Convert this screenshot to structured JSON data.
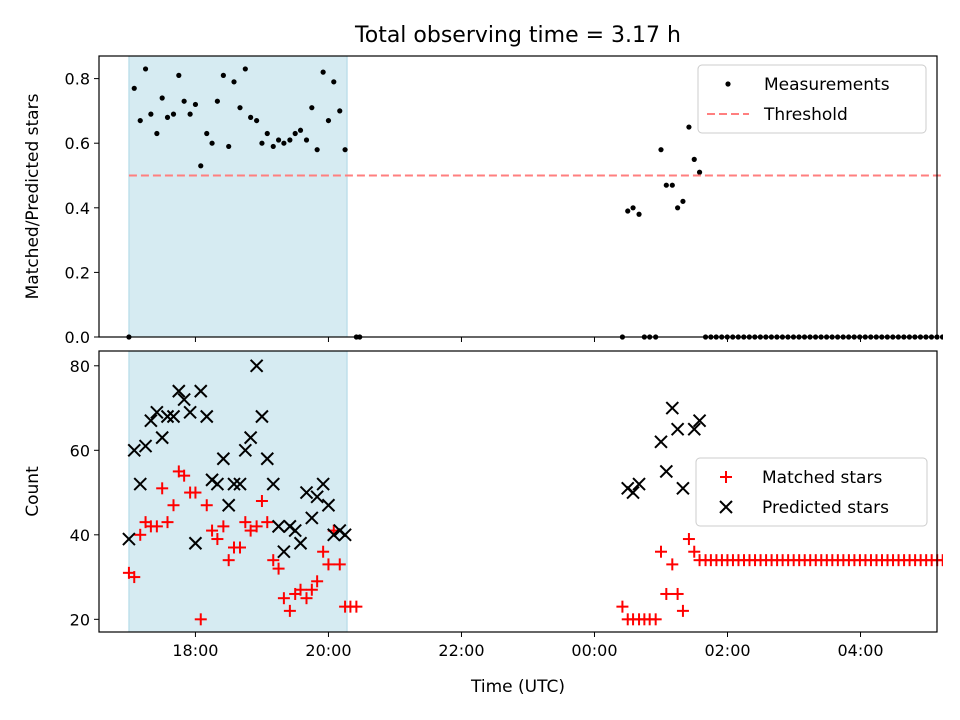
{
  "title": "Total observing time = 3.17 h",
  "xlabel": "Time (UTC)",
  "x_ticks": [
    {
      "hour": 18,
      "label": "18:00"
    },
    {
      "hour": 20,
      "label": "20:00"
    },
    {
      "hour": 22,
      "label": "22:00"
    },
    {
      "hour": 24,
      "label": "00:00"
    },
    {
      "hour": 26,
      "label": "02:00"
    },
    {
      "hour": 28,
      "label": "04:00"
    }
  ],
  "colors": {
    "shade": "#add8e6",
    "measurements": "#000000",
    "threshold": "#ff7f7f",
    "matched": "#ff0000",
    "predicted": "#000000"
  },
  "chart_data": [
    {
      "type": "scatter",
      "ylabel": "Matched/Predicted stars",
      "xlim": [
        16.55,
        29.15
      ],
      "ylim": [
        0,
        0.87
      ],
      "y_ticks": [
        0.0,
        0.2,
        0.4,
        0.6,
        0.8
      ],
      "shaded_span": [
        17.0,
        20.28
      ],
      "legend_position": "upper right",
      "series": [
        {
          "name": "Measurements",
          "marker": "point",
          "x": [
            17.0,
            17.08,
            17.17,
            17.25,
            17.33,
            17.42,
            17.5,
            17.58,
            17.67,
            17.75,
            17.83,
            17.92,
            18.0,
            18.08,
            18.17,
            18.25,
            18.33,
            18.42,
            18.5,
            18.58,
            18.67,
            18.75,
            18.83,
            18.92,
            19.0,
            19.08,
            19.17,
            19.25,
            19.33,
            19.42,
            19.5,
            19.58,
            19.67,
            19.75,
            19.83,
            19.92,
            20.0,
            20.08,
            20.17,
            20.25,
            20.42,
            20.47,
            24.42,
            24.5,
            24.58,
            24.67,
            24.75,
            24.83,
            24.92,
            25.0,
            25.08,
            25.17,
            25.25,
            25.33,
            25.42,
            25.5,
            25.58,
            25.67,
            25.75
          ],
          "y": [
            0.0,
            0.77,
            0.67,
            0.83,
            0.69,
            0.63,
            0.74,
            0.68,
            0.69,
            0.81,
            0.73,
            0.69,
            0.72,
            0.53,
            0.63,
            0.6,
            0.73,
            0.81,
            0.59,
            0.79,
            0.71,
            0.83,
            0.68,
            0.67,
            0.6,
            0.63,
            0.59,
            0.61,
            0.6,
            0.61,
            0.63,
            0.64,
            0.61,
            0.71,
            0.58,
            0.82,
            0.67,
            0.79,
            0.7,
            0.58,
            0.0,
            0.0,
            0.0,
            0.39,
            0.4,
            0.38,
            0.0,
            0.0,
            0.0,
            0.58,
            0.47,
            0.47,
            0.4,
            0.42,
            0.65,
            0.55,
            0.51,
            0.0,
            0.0
          ]
        },
        {
          "name": "Threshold",
          "marker": "dashed-line",
          "x": [
            17.0,
            29.5
          ],
          "y": [
            0.5,
            0.5
          ]
        }
      ],
      "flat_run": {
        "series": "Measurements",
        "from": 25.83,
        "to": 29.58,
        "step": 0.083,
        "y": 0.0
      }
    },
    {
      "type": "scatter",
      "ylabel": "Count",
      "xlim": [
        16.55,
        29.15
      ],
      "ylim": [
        17,
        83.5
      ],
      "y_ticks": [
        20,
        40,
        60,
        80
      ],
      "shaded_span": [
        17.0,
        20.28
      ],
      "legend_position": "center right",
      "series": [
        {
          "name": "Matched stars",
          "marker": "plus",
          "x": [
            17.0,
            17.08,
            17.17,
            17.25,
            17.33,
            17.42,
            17.5,
            17.58,
            17.67,
            17.75,
            17.83,
            17.92,
            18.0,
            18.08,
            18.17,
            18.25,
            18.33,
            18.42,
            18.5,
            18.58,
            18.67,
            18.75,
            18.83,
            18.92,
            19.0,
            19.08,
            19.17,
            19.25,
            19.33,
            19.42,
            19.5,
            19.58,
            19.67,
            19.75,
            19.83,
            19.92,
            20.0,
            20.08,
            20.17,
            20.25,
            20.33,
            20.42,
            24.42,
            24.5,
            24.58,
            24.67,
            24.75,
            24.83,
            24.92,
            25.0,
            25.08,
            25.17,
            25.25,
            25.33,
            25.42,
            25.5,
            25.58,
            25.67
          ],
          "y": [
            31,
            30,
            40,
            43,
            42,
            42,
            51,
            43,
            47,
            55,
            54,
            50,
            50,
            20,
            47,
            41,
            39,
            42,
            34,
            37,
            37,
            43,
            41,
            42,
            48,
            43,
            34,
            32,
            25,
            22,
            26,
            27,
            25,
            27,
            29,
            36,
            33,
            41,
            33,
            23,
            23,
            23,
            23,
            20,
            20,
            20,
            20,
            20,
            20,
            36,
            26,
            33,
            26,
            22,
            39,
            36,
            34,
            34
          ]
        },
        {
          "name": "Predicted stars",
          "marker": "x",
          "x": [
            17.0,
            17.08,
            17.17,
            17.25,
            17.33,
            17.42,
            17.5,
            17.58,
            17.67,
            17.75,
            17.83,
            17.92,
            18.0,
            18.08,
            18.17,
            18.25,
            18.33,
            18.42,
            18.5,
            18.58,
            18.67,
            18.75,
            18.83,
            18.92,
            19.0,
            19.08,
            19.17,
            19.25,
            19.33,
            19.42,
            19.5,
            19.58,
            19.67,
            19.75,
            19.83,
            19.92,
            20.0,
            20.08,
            20.17,
            20.25,
            24.5,
            24.58,
            24.67,
            25.0,
            25.08,
            25.17,
            25.25,
            25.33,
            25.5,
            25.58
          ],
          "y": [
            39,
            60,
            52,
            61,
            67,
            69,
            63,
            68,
            68,
            74,
            72,
            69,
            38,
            74,
            68,
            53,
            52,
            58,
            47,
            52,
            52,
            60,
            63,
            80,
            68,
            58,
            52,
            42,
            36,
            42,
            41,
            38,
            50,
            44,
            49,
            52,
            47,
            40,
            41,
            40,
            51,
            50,
            52,
            62,
            55,
            70,
            65,
            51,
            65,
            67
          ]
        }
      ],
      "flat_run": {
        "series": "Matched stars",
        "from": 25.75,
        "to": 29.58,
        "step": 0.083,
        "y": 34
      }
    }
  ]
}
